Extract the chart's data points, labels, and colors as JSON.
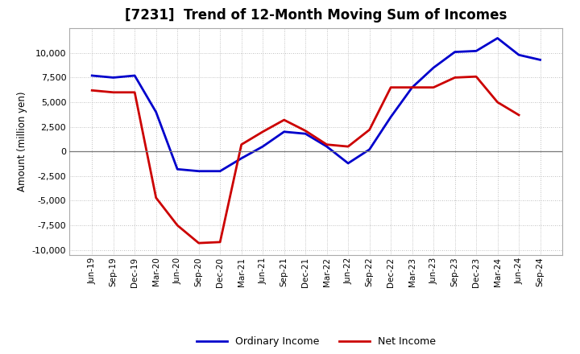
{
  "title": "[7231]  Trend of 12-Month Moving Sum of Incomes",
  "ylabel": "Amount (million yen)",
  "x_labels": [
    "Jun-19",
    "Sep-19",
    "Dec-19",
    "Mar-20",
    "Jun-20",
    "Sep-20",
    "Dec-20",
    "Mar-21",
    "Jun-21",
    "Sep-21",
    "Dec-21",
    "Mar-22",
    "Jun-22",
    "Sep-22",
    "Dec-22",
    "Mar-23",
    "Jun-23",
    "Sep-23",
    "Dec-23",
    "Mar-24",
    "Jun-24",
    "Sep-24"
  ],
  "ordinary_income": [
    7700,
    7500,
    7700,
    4000,
    -1800,
    -2000,
    -2000,
    -700,
    500,
    2000,
    1800,
    500,
    -1200,
    200,
    3500,
    6500,
    8500,
    10100,
    10200,
    11500,
    9800,
    9300
  ],
  "net_income": [
    6200,
    6000,
    6000,
    -4700,
    -7500,
    -9300,
    -9200,
    700,
    2000,
    3200,
    2100,
    700,
    500,
    2200,
    6500,
    6500,
    6500,
    7500,
    7600,
    5000,
    3700,
    null
  ],
  "ordinary_color": "#0000cc",
  "net_color": "#cc0000",
  "ylim": [
    -10500,
    12500
  ],
  "yticks": [
    -10000,
    -7500,
    -5000,
    -2500,
    0,
    2500,
    5000,
    7500,
    10000
  ],
  "grid_color": "#aaaaaa",
  "background_color": "#ffffff",
  "title_fontsize": 12,
  "legend_labels": [
    "Ordinary Income",
    "Net Income"
  ]
}
